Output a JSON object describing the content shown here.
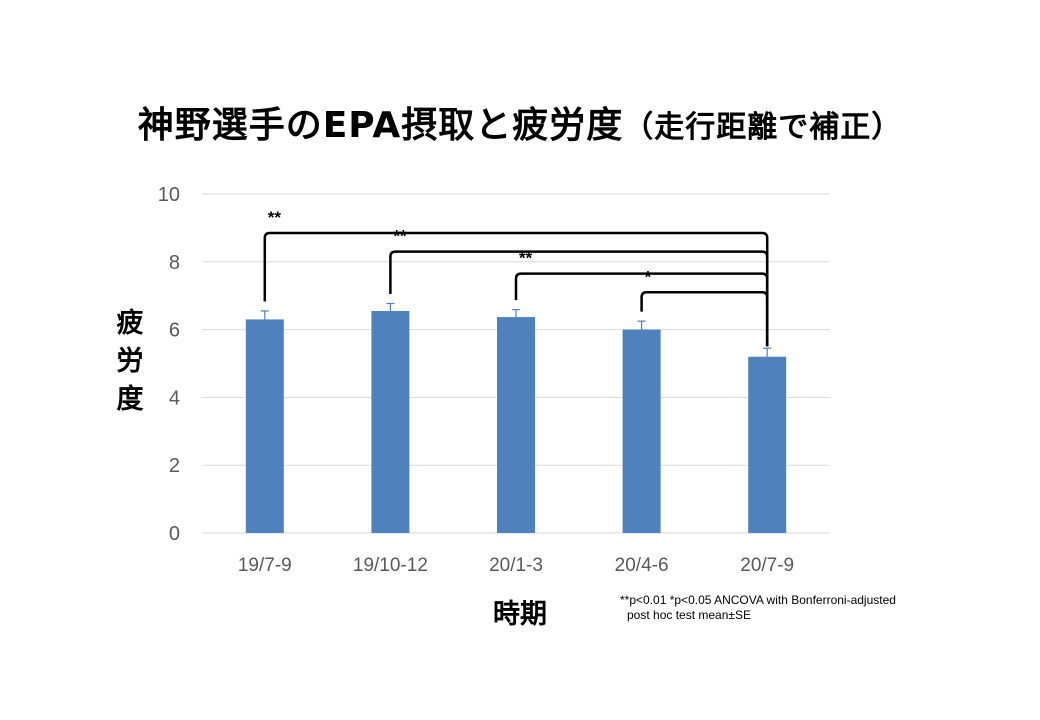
{
  "title_main": "神野選手のEPA摂取と疲労度",
  "title_sub": "（走行距離で補正）",
  "note_line1": "**p<0.01 *p<0.05  ANCOVA with Bonferroni-adjusted",
  "note_line2": "post hoc test   mean±SE",
  "colors": {
    "bar": "#4f81bd",
    "grid": "#d9d9d9",
    "tick_text": "#595959",
    "bracket": "#000000"
  },
  "chart_data": {
    "type": "bar",
    "title": "神野選手のEPA摂取と疲労度（走行距離で補正）",
    "xlabel": "時期",
    "ylabel": "疲労度",
    "categories": [
      "19/7-9",
      "19/10-12",
      "20/1-3",
      "20/4-6",
      "20/7-9"
    ],
    "values": [
      6.3,
      6.55,
      6.37,
      6.0,
      5.2
    ],
    "errors": [
      0.25,
      0.22,
      0.22,
      0.25,
      0.25
    ],
    "ylim": [
      0,
      10
    ],
    "yticks": [
      0,
      2,
      4,
      6,
      8,
      10
    ],
    "grid": true,
    "legend": "none",
    "significance": [
      {
        "from": "19/7-9",
        "to": "20/7-9",
        "label": "**"
      },
      {
        "from": "19/10-12",
        "to": "20/7-9",
        "label": "**"
      },
      {
        "from": "20/1-3",
        "to": "20/7-9",
        "label": "**"
      },
      {
        "from": "20/4-6",
        "to": "20/7-9",
        "label": "*"
      }
    ]
  }
}
